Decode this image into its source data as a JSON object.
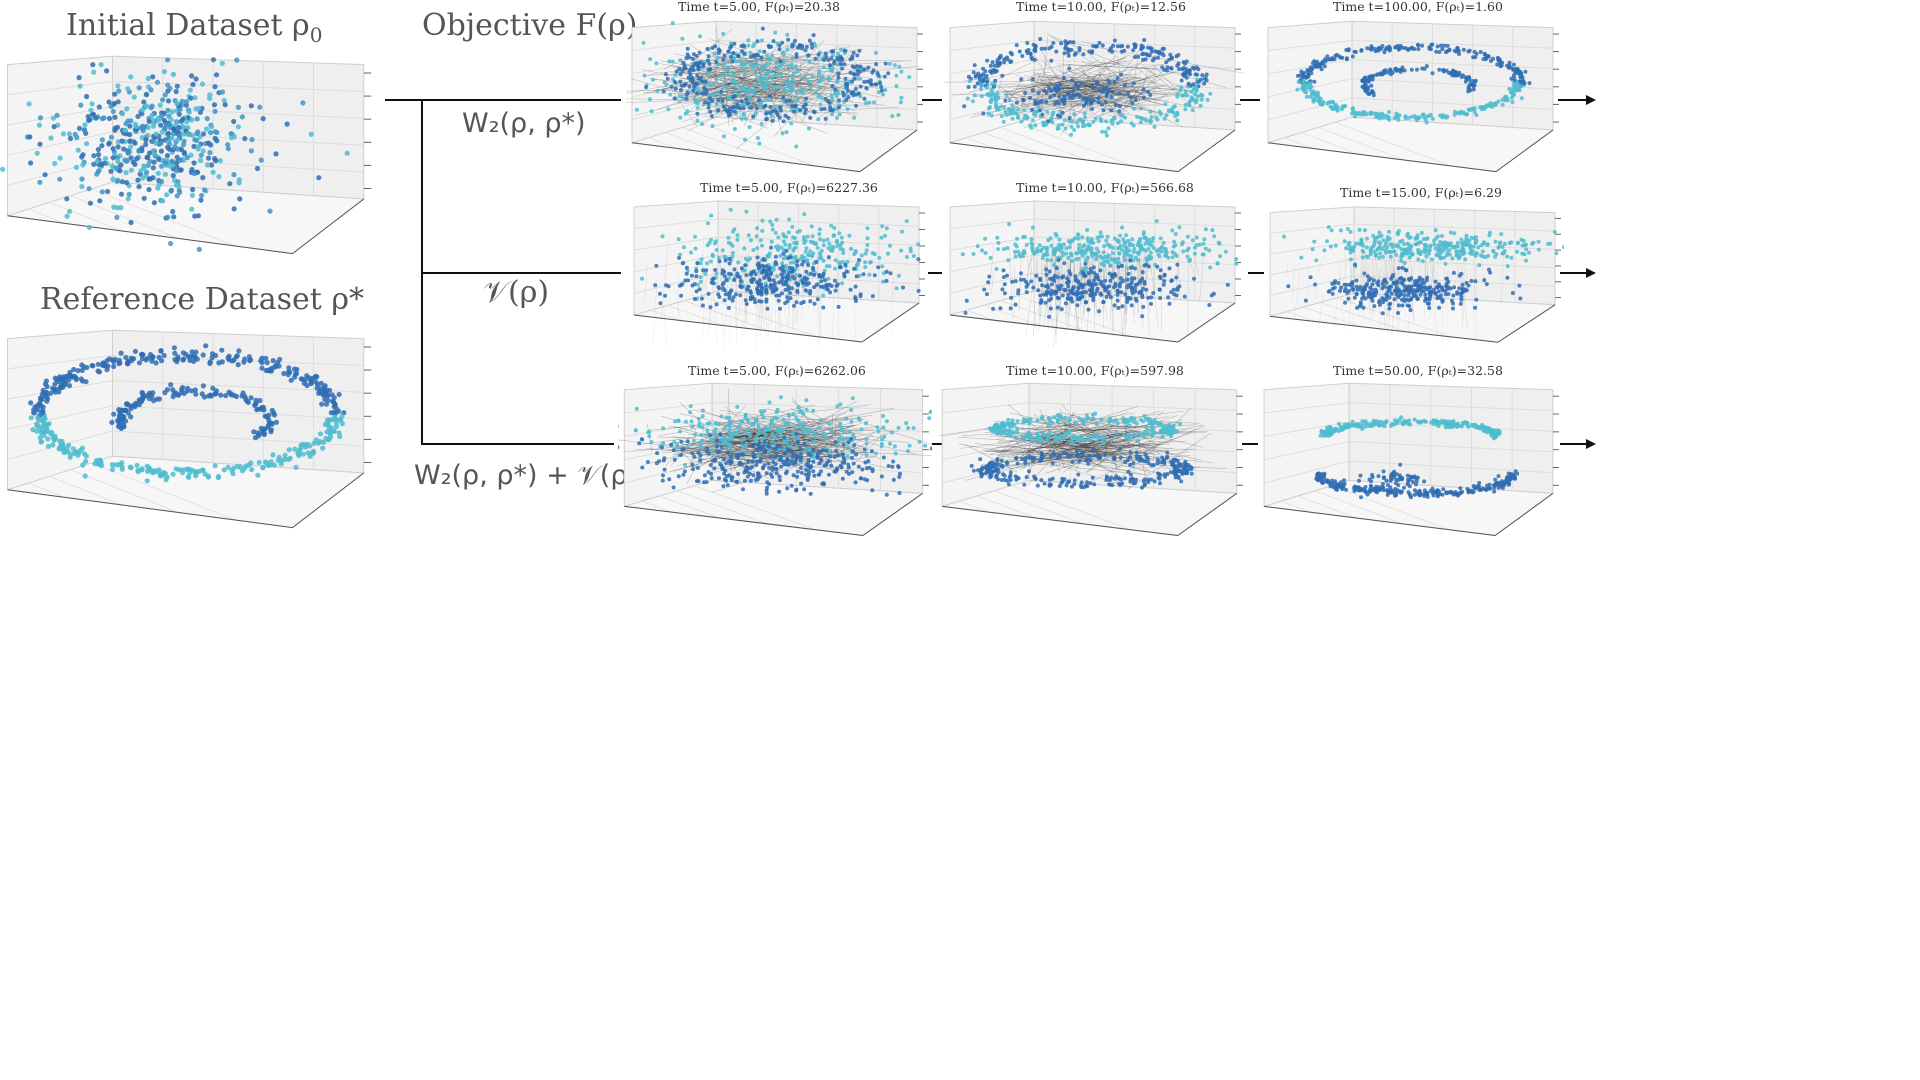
{
  "labels": {
    "initial": "Initial Dataset ρ",
    "initial_sub": "0",
    "objective": "Objective F(ρ)",
    "reference": "Reference Dataset ρ*",
    "row1": "W₂(ρ, ρ*)",
    "row2": "𝒱(ρ)",
    "row3": "W₂(ρ, ρ*) + 𝒱(ρ)"
  },
  "panels": [
    {
      "id": "r1c1",
      "title": "Time t=5.00,  F(ρₜ)=20.38"
    },
    {
      "id": "r1c2",
      "title": "Time t=10.00,  F(ρₜ)=12.56"
    },
    {
      "id": "r1c3",
      "title": "Time t=100.00,  F(ρₜ)=1.60"
    },
    {
      "id": "r2c1",
      "title": "Time t=5.00,  F(ρₜ)=6227.36"
    },
    {
      "id": "r2c2",
      "title": "Time t=10.00,  F(ρₜ)=566.68"
    },
    {
      "id": "r2c3",
      "title": "Time t=15.00,  F(ρₜ)=6.29"
    },
    {
      "id": "r3c1",
      "title": "Time t=5.00,  F(ρₜ)=6262.06"
    },
    {
      "id": "r3c2",
      "title": "Time t=10.00,  F(ρₜ)=597.98"
    },
    {
      "id": "r3c3",
      "title": "Time t=50.00,  F(ρₜ)=32.58"
    }
  ],
  "colors": {
    "dark": "#2f6db3",
    "light": "#4fbccf",
    "mid": "#3f95c6",
    "line": "#111111"
  }
}
